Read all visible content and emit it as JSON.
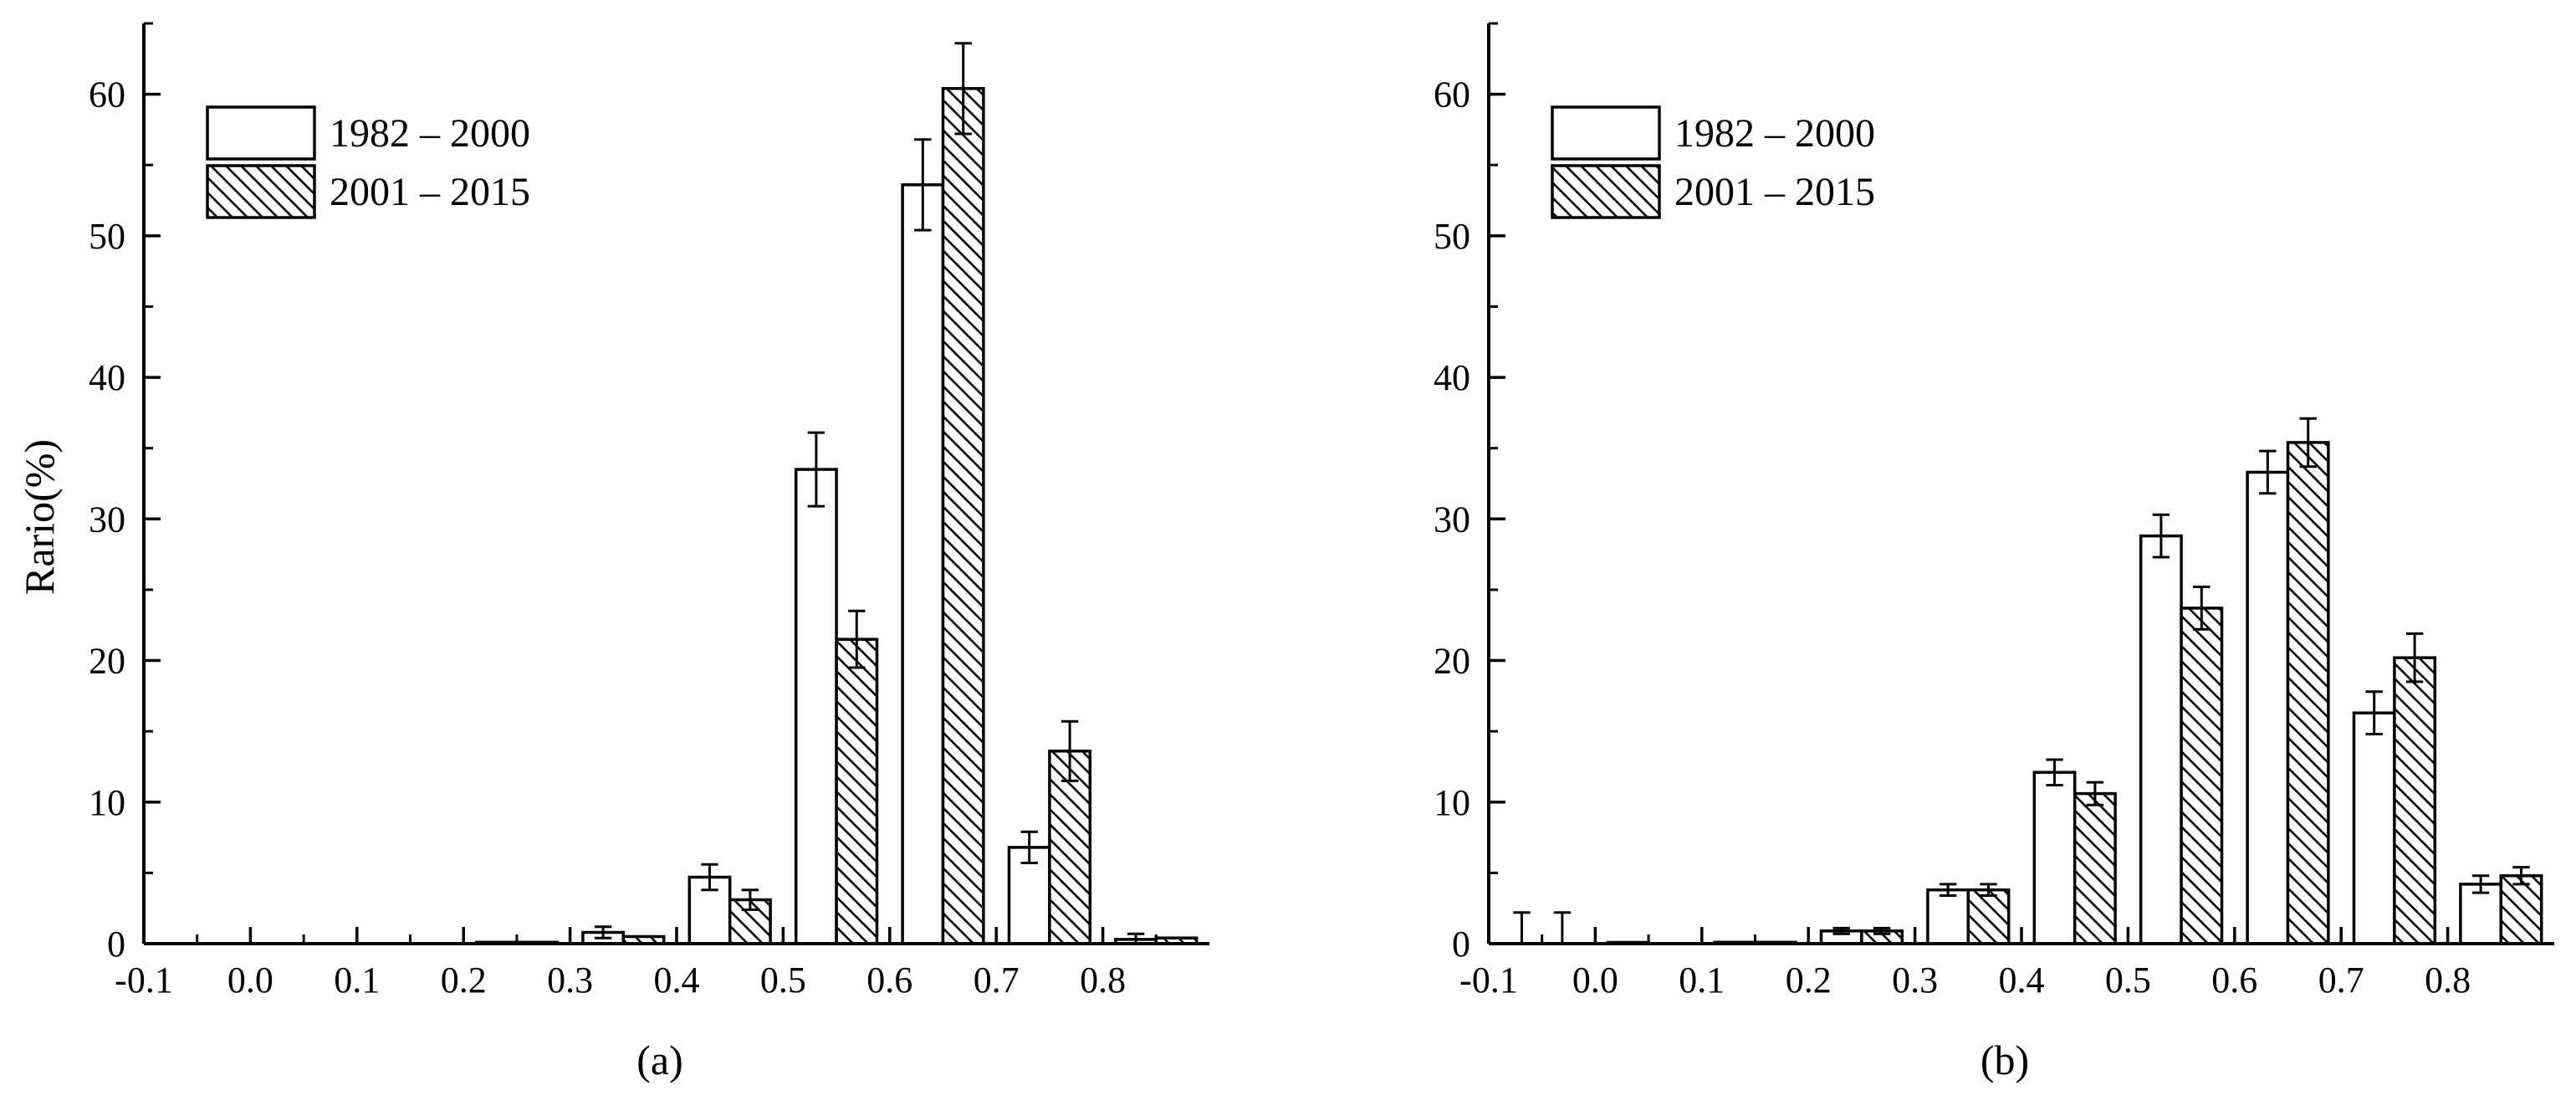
{
  "chart_data": [
    {
      "type": "bar",
      "panel_label": "(a)",
      "ylabel": "Rario(%)",
      "xlabel": "",
      "xlim": [
        -0.1,
        0.9
      ],
      "ylim": [
        0,
        65
      ],
      "x_tick_labels": [
        "-0.1",
        "0.0",
        "0.1",
        "0.2",
        "0.3",
        "0.4",
        "0.5",
        "0.6",
        "0.7",
        "0.8"
      ],
      "y_tick_labels": [
        "0",
        "10",
        "20",
        "30",
        "40",
        "50",
        "60"
      ],
      "bin_starts": [
        -0.1,
        0.0,
        0.1,
        0.2,
        0.3,
        0.4,
        0.5,
        0.6,
        0.7,
        0.8
      ],
      "legend_position": "top-left",
      "series": [
        {
          "name": "1982 – 2000",
          "pattern": "open",
          "values": [
            0,
            0,
            0,
            0.1,
            0.8,
            4.7,
            33.5,
            53.6,
            6.8,
            0.3
          ],
          "errors": [
            0,
            0,
            0,
            0,
            0.4,
            0.9,
            2.6,
            3.2,
            1.1,
            0.4
          ]
        },
        {
          "name": "2001 – 2015",
          "pattern": "hatched",
          "values": [
            0,
            0,
            0,
            0.1,
            0.5,
            3.1,
            21.5,
            60.4,
            13.6,
            0.4
          ],
          "errors": [
            0,
            0,
            0,
            0,
            0,
            0.7,
            2.0,
            3.2,
            2.1,
            0
          ]
        }
      ]
    },
    {
      "type": "bar",
      "panel_label": "(b)",
      "ylabel": "",
      "xlabel": "",
      "xlim": [
        -0.1,
        0.9
      ],
      "ylim": [
        0,
        65
      ],
      "x_tick_labels": [
        "-0.1",
        "0.0",
        "0.1",
        "0.2",
        "0.3",
        "0.4",
        "0.5",
        "0.6",
        "0.7",
        "0.8"
      ],
      "y_tick_labels": [
        "0",
        "10",
        "20",
        "30",
        "40",
        "50",
        "60"
      ],
      "bin_starts": [
        -0.1,
        0.0,
        0.1,
        0.2,
        0.3,
        0.4,
        0.5,
        0.6,
        0.7,
        0.8
      ],
      "legend_position": "top-left",
      "series": [
        {
          "name": "1982 – 2000",
          "pattern": "open",
          "values": [
            0,
            0.05,
            0.1,
            0.9,
            3.8,
            12.1,
            28.8,
            33.3,
            16.3,
            4.2
          ],
          "errors": [
            2.2,
            0,
            0,
            0.2,
            0.4,
            0.9,
            1.5,
            1.5,
            1.5,
            0.6
          ]
        },
        {
          "name": "2001 – 2015",
          "pattern": "hatched",
          "values": [
            0,
            0,
            0.1,
            0.9,
            3.8,
            10.6,
            23.7,
            35.4,
            20.2,
            4.8
          ],
          "errors": [
            2.2,
            0,
            0,
            0.2,
            0.4,
            0.8,
            1.5,
            1.7,
            1.7,
            0.6
          ]
        }
      ]
    }
  ]
}
